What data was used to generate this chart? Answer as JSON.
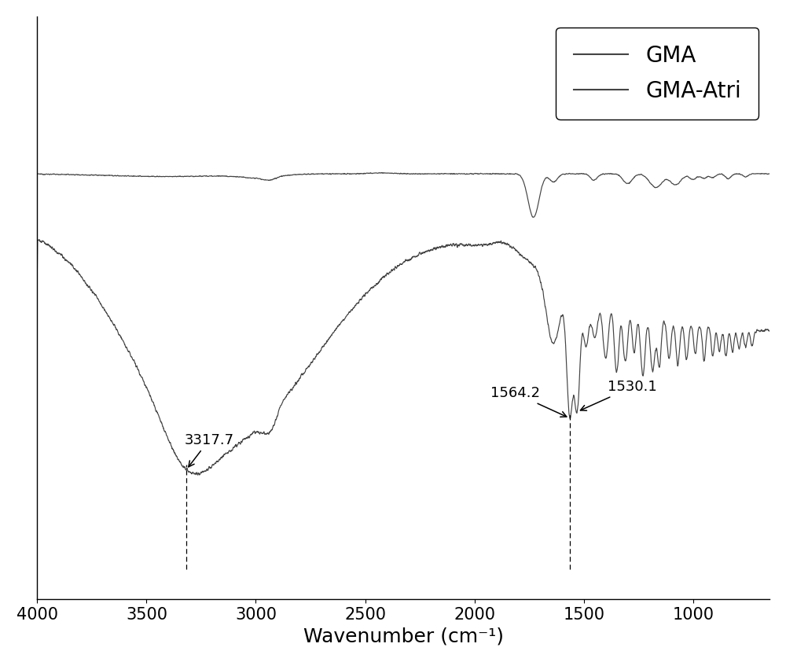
{
  "xlabel": "Wavenumber (cm⁻¹)",
  "xlim": [
    4000,
    650
  ],
  "legend_labels": [
    "GMA",
    "GMA-Atri"
  ],
  "line_color": "#444444",
  "annotation_3317": "3317.7",
  "annotation_1564": "1564.2",
  "annotation_1530": "1530.1",
  "xticks": [
    4000,
    3500,
    3000,
    2500,
    2000,
    1500,
    1000
  ],
  "background_color": "#ffffff",
  "font_size_xlabel": 18,
  "font_size_tick": 15,
  "font_size_legend": 20,
  "font_size_annotation": 13
}
